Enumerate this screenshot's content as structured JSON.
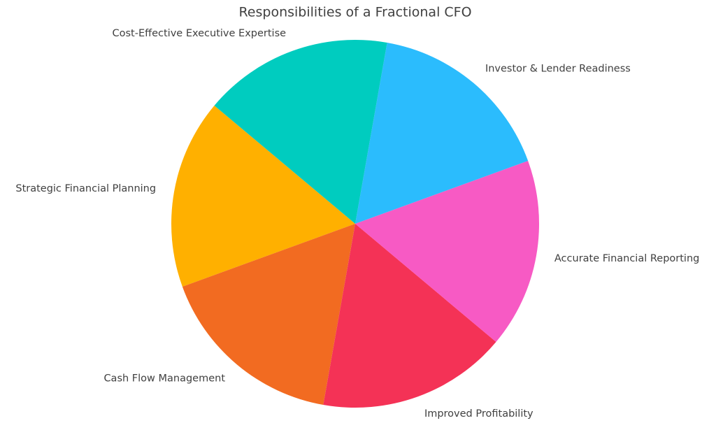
{
  "chart_data": {
    "type": "pie",
    "title": "Responsibilities of a Fractional CFO",
    "categories": [
      "Strategic Financial Planning",
      "Cash Flow Management",
      "Improved Profitability",
      "Accurate Financial Reporting",
      "Investor & Lender Readiness",
      "Cost-Effective Executive Expertise"
    ],
    "values": [
      1,
      1,
      1,
      1,
      1,
      1
    ],
    "colors": [
      "#ffb000",
      "#f26b21",
      "#f43256",
      "#f75ac4",
      "#2bbcfd",
      "#00ccbf"
    ]
  }
}
